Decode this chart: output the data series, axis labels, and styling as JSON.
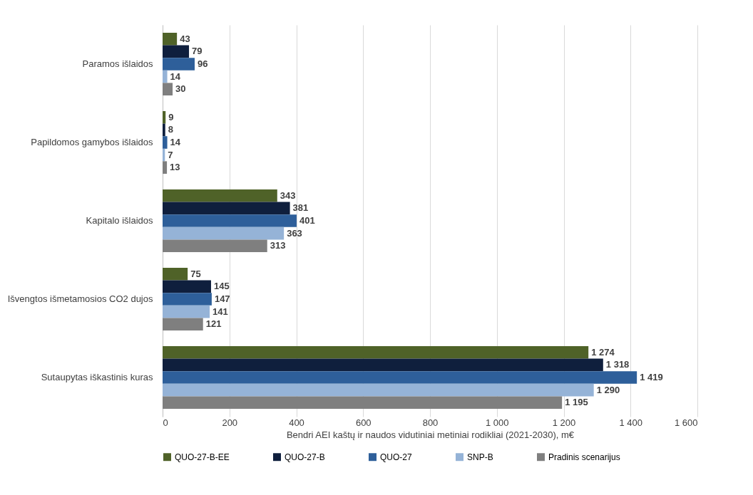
{
  "chart_data": {
    "type": "bar",
    "orientation": "horizontal",
    "xlabel": "Bendri AEI kaštų ir naudos vidutiniai metiniai rodikliai (2021-2030), m€",
    "categories": [
      "Paramos išlaidos",
      "Papildomos gamybos išlaidos",
      "Kapitalo išlaidos",
      "Išvengtos išmetamosios CO2 dujos",
      "Sutaupytas iškastinis kuras"
    ],
    "series": [
      {
        "name": "QUO-27-B-EE",
        "color": "#4f6228",
        "values": [
          43,
          9,
          343,
          75,
          1274
        ],
        "value_labels": [
          "43",
          "9",
          "343",
          "75",
          "1 274"
        ]
      },
      {
        "name": "QUO-27-B",
        "color": "#0f1f3d",
        "values": [
          79,
          8,
          381,
          145,
          1318
        ],
        "value_labels": [
          "79",
          "8",
          "381",
          "145",
          "1 318"
        ]
      },
      {
        "name": "QUO-27",
        "color": "#2e5f9a",
        "values": [
          96,
          14,
          401,
          147,
          1419
        ],
        "value_labels": [
          "96",
          "14",
          "401",
          "147",
          "1 419"
        ]
      },
      {
        "name": "SNP-B",
        "color": "#95b3d7",
        "values": [
          14,
          7,
          363,
          141,
          1290
        ],
        "value_labels": [
          "14",
          "7",
          "363",
          "141",
          "1 290"
        ]
      },
      {
        "name": "Pradinis scenarijus",
        "color": "#7f7f7f",
        "values": [
          30,
          13,
          313,
          121,
          1195
        ],
        "value_labels": [
          "30",
          "13",
          "313",
          "121",
          "1 195"
        ]
      }
    ],
    "xlim": [
      0,
      1600
    ],
    "xticks": [
      0,
      200,
      400,
      600,
      800,
      {
        "value": 1000,
        "label": "1 000"
      },
      {
        "value": 1200,
        "label": "1 200"
      },
      {
        "value": 1400,
        "label": "1 400"
      },
      {
        "value": 1600,
        "label": "1 600"
      }
    ],
    "grid": "x",
    "legend": "bottom"
  }
}
